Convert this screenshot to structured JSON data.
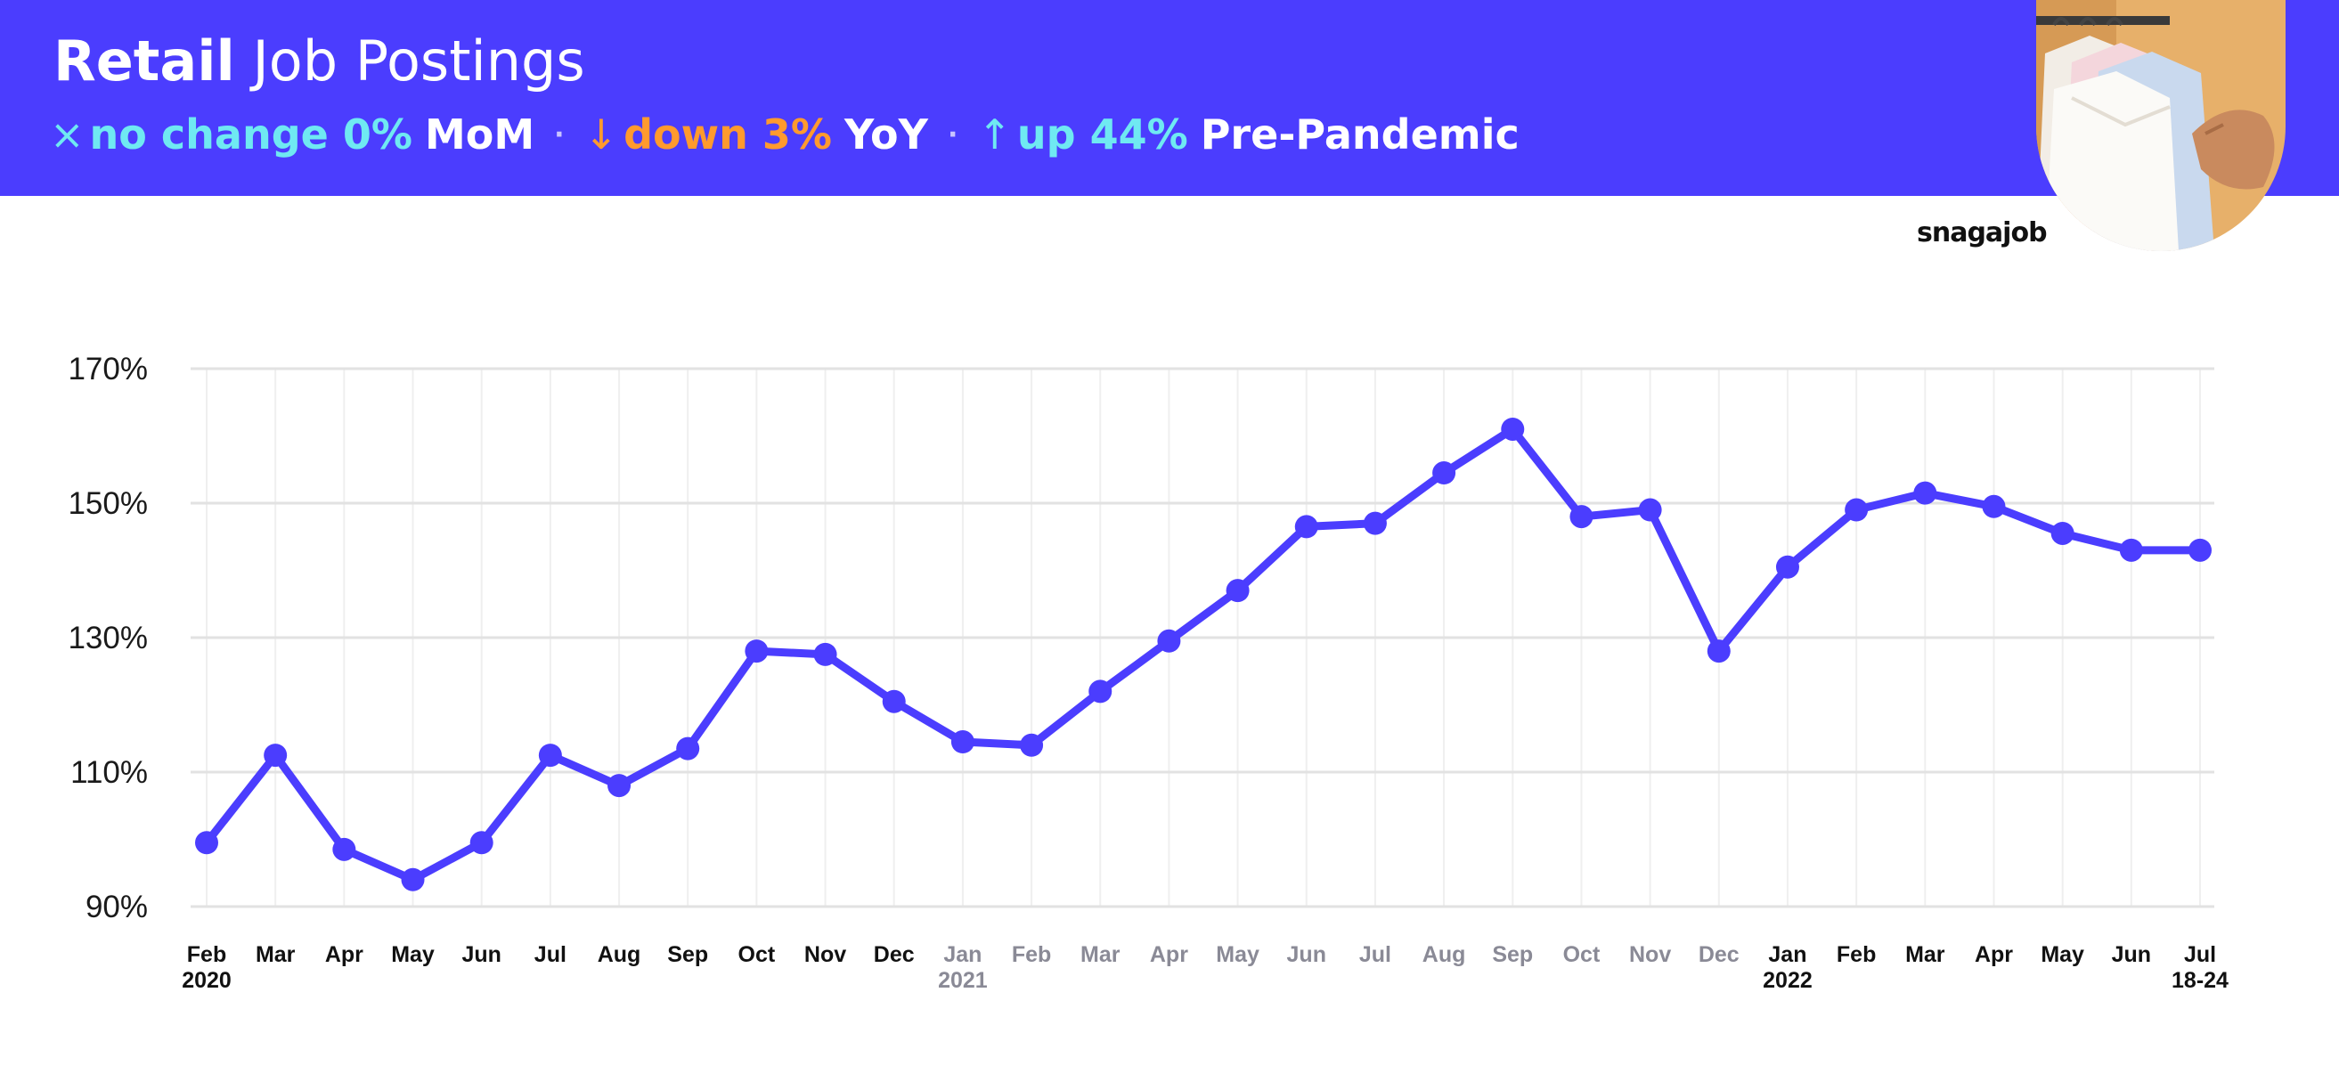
{
  "header": {
    "title_bold": "Retail",
    "title_rest": "Job Postings",
    "stats": [
      {
        "arrow": "×",
        "text": "no change 0%",
        "label": "MoM",
        "color": "#6fe9f2"
      },
      {
        "arrow": "↓",
        "text": "down 3%",
        "label": "YoY",
        "color": "#ff9a2e"
      },
      {
        "arrow": "↑",
        "text": "up 44%",
        "label": "Pre-Pandemic",
        "color": "#6fe9f2"
      }
    ],
    "separator": "·"
  },
  "logo": "snagajob",
  "colors": {
    "header_bg": "#4b3dfe",
    "line": "#4b3dfe",
    "tick_dark": "#111111",
    "tick_muted": "#8a8a96"
  },
  "chart_data": {
    "type": "line",
    "x": [
      "Feb",
      "Mar",
      "Apr",
      "May",
      "Jun",
      "Jul",
      "Aug",
      "Sep",
      "Oct",
      "Nov",
      "Dec",
      "Jan",
      "Feb",
      "Mar",
      "Apr",
      "May",
      "Jun",
      "Jul",
      "Aug",
      "Sep",
      "Oct",
      "Nov",
      "Dec",
      "Jan",
      "Feb",
      "Mar",
      "Apr",
      "May",
      "Jun",
      "Jul"
    ],
    "x_sublabels": [
      "2020",
      "",
      "",
      "",
      "",
      "",
      "",
      "",
      "",
      "",
      "",
      "2021",
      "",
      "",
      "",
      "",
      "",
      "",
      "",
      "",
      "",
      "",
      "",
      "2022",
      "",
      "",
      "",
      "",
      "",
      "18-24"
    ],
    "x_muted": [
      false,
      false,
      false,
      false,
      false,
      false,
      false,
      false,
      false,
      false,
      false,
      true,
      true,
      true,
      true,
      true,
      true,
      true,
      true,
      true,
      true,
      true,
      true,
      false,
      false,
      false,
      false,
      false,
      false,
      false
    ],
    "series": [
      {
        "values": [
          99.5,
          112.5,
          98.5,
          94,
          99.5,
          112.5,
          108,
          113.5,
          128,
          127.5,
          120.5,
          114.5,
          114,
          122,
          129.5,
          137,
          146.5,
          147,
          154.5,
          161,
          148,
          149,
          128,
          140.5,
          149,
          151.5,
          149.5,
          145.5,
          143,
          143
        ]
      }
    ],
    "y_ticks": [
      "90%",
      "110%",
      "130%",
      "150%",
      "170%"
    ],
    "y_tick_values": [
      90,
      110,
      130,
      150,
      170
    ],
    "ylim": [
      90,
      170
    ],
    "title": "",
    "xlabel": "",
    "ylabel": "",
    "grid": true,
    "legend": "none"
  }
}
